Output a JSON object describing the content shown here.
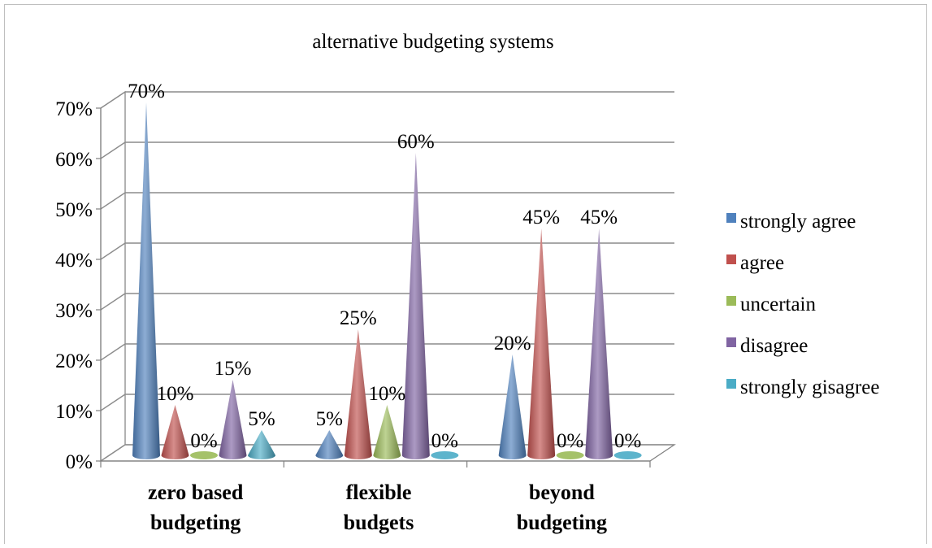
{
  "chart_data": {
    "type": "bar",
    "title": "alternative budgeting systems",
    "categories": [
      "zero based budgeting",
      "flexible budgets",
      "beyond budgeting"
    ],
    "category_lines": [
      [
        "zero based",
        "budgeting"
      ],
      [
        "flexible",
        "budgets"
      ],
      [
        "beyond",
        "budgeting"
      ]
    ],
    "series": [
      {
        "name": "strongly agree",
        "values": [
          70,
          5,
          20
        ],
        "labels": [
          "70%",
          "5%",
          "20%"
        ],
        "color": "#4f81bd"
      },
      {
        "name": "agree",
        "values": [
          10,
          25,
          45
        ],
        "labels": [
          "10%",
          "25%",
          "45%"
        ],
        "color": "#c0504d"
      },
      {
        "name": "uncertain",
        "values": [
          0,
          10,
          0
        ],
        "labels": [
          "0%",
          "10%",
          "0%"
        ],
        "color": "#9bbb59"
      },
      {
        "name": "disagree",
        "values": [
          15,
          60,
          45
        ],
        "labels": [
          "15%",
          "60%",
          "45%"
        ],
        "color": "#8064a2"
      },
      {
        "name": "strongly gisagree",
        "values": [
          5,
          0,
          0
        ],
        "labels": [
          "5%",
          "0%",
          "0%"
        ],
        "color": "#4bacc6"
      }
    ],
    "y_ticks": [
      "0%",
      "10%",
      "20%",
      "30%",
      "40%",
      "50%",
      "60%",
      "70%"
    ],
    "ylim": [
      0,
      70
    ],
    "grid": true,
    "legend_position": "right",
    "shape": "cone"
  }
}
